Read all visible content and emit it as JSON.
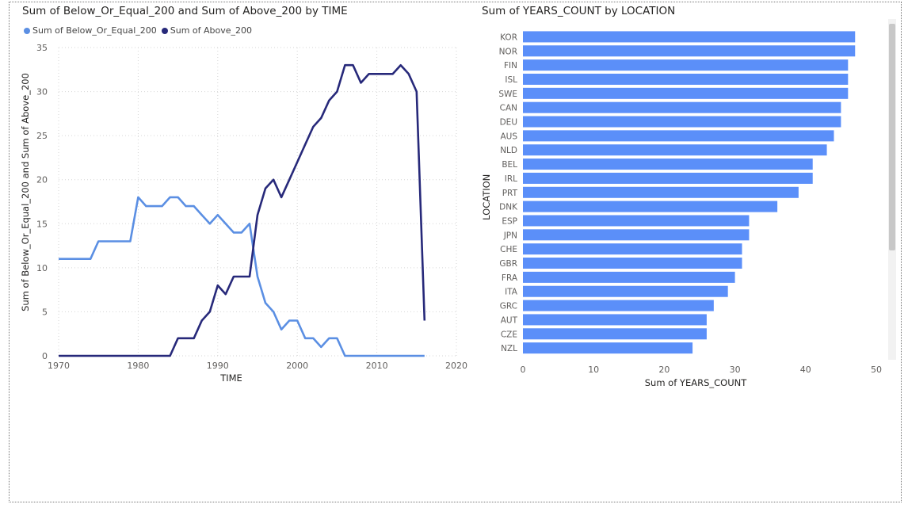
{
  "line_visual": {
    "title": "Sum of Below_Or_Equal_200 and Sum of Above_200 by TIME",
    "legend": [
      {
        "label": "Sum of Below_Or_Equal_200",
        "color": "#5B8FE3"
      },
      {
        "label": "Sum of Above_200",
        "color": "#27297A"
      }
    ]
  },
  "bar_visual": {
    "title": "Sum of YEARS_COUNT by LOCATION"
  },
  "chart_data": [
    {
      "type": "line",
      "title": "Sum of Below_Or_Equal_200 and Sum of Above_200 by TIME",
      "xlabel": "TIME",
      "ylabel": "Sum of Below_Or_Equal_200 and Sum of Above_200",
      "xlim": [
        1970,
        2020
      ],
      "ylim": [
        0,
        35
      ],
      "xticks": [
        "1970",
        "1980",
        "1990",
        "2000",
        "2010",
        "2020"
      ],
      "yticks": [
        "0",
        "5",
        "10",
        "15",
        "20",
        "25",
        "30",
        "35"
      ],
      "grid": true,
      "legend_position": "top-left",
      "x": [
        1970,
        1971,
        1972,
        1973,
        1974,
        1975,
        1976,
        1977,
        1978,
        1979,
        1980,
        1981,
        1982,
        1983,
        1984,
        1985,
        1986,
        1987,
        1988,
        1989,
        1990,
        1991,
        1992,
        1993,
        1994,
        1995,
        1996,
        1997,
        1998,
        1999,
        2000,
        2001,
        2002,
        2003,
        2004,
        2005,
        2006,
        2007,
        2008,
        2009,
        2010,
        2011,
        2012,
        2013,
        2014,
        2015,
        2016
      ],
      "series": [
        {
          "name": "Sum of Below_Or_Equal_200",
          "color": "#5B8FE3",
          "values": [
            11,
            11,
            11,
            11,
            11,
            13,
            13,
            13,
            13,
            13,
            18,
            17,
            17,
            17,
            18,
            18,
            17,
            17,
            16,
            15,
            16,
            15,
            14,
            14,
            15,
            9,
            6,
            5,
            3,
            4,
            4,
            2,
            2,
            1,
            2,
            2,
            0,
            0,
            0,
            0,
            0,
            0,
            0,
            0,
            0,
            0,
            0
          ]
        },
        {
          "name": "Sum of Above_200",
          "color": "#27297A",
          "values": [
            0,
            0,
            0,
            0,
            0,
            0,
            0,
            0,
            0,
            0,
            0,
            0,
            0,
            0,
            0,
            2,
            2,
            2,
            4,
            5,
            8,
            7,
            9,
            9,
            9,
            16,
            19,
            20,
            18,
            20,
            22,
            24,
            26,
            27,
            29,
            30,
            33,
            33,
            31,
            32,
            32,
            32,
            32,
            33,
            32,
            30,
            4
          ]
        }
      ]
    },
    {
      "type": "bar",
      "orientation": "horizontal",
      "title": "Sum of YEARS_COUNT by LOCATION",
      "xlabel": "Sum of YEARS_COUNT",
      "ylabel": "LOCATION",
      "xlim": [
        0,
        50
      ],
      "xticks": [
        "0",
        "10",
        "20",
        "30",
        "40",
        "50"
      ],
      "grid": false,
      "color": "#5B8FF9",
      "categories": [
        "KOR",
        "NOR",
        "FIN",
        "ISL",
        "SWE",
        "CAN",
        "DEU",
        "AUS",
        "NLD",
        "BEL",
        "IRL",
        "PRT",
        "DNK",
        "ESP",
        "JPN",
        "CHE",
        "GBR",
        "FRA",
        "ITA",
        "GRC",
        "AUT",
        "CZE",
        "NZL"
      ],
      "values": [
        47,
        47,
        46,
        46,
        46,
        45,
        45,
        44,
        43,
        41,
        41,
        39,
        36,
        32,
        32,
        31,
        31,
        30,
        29,
        27,
        26,
        26,
        24
      ]
    }
  ]
}
